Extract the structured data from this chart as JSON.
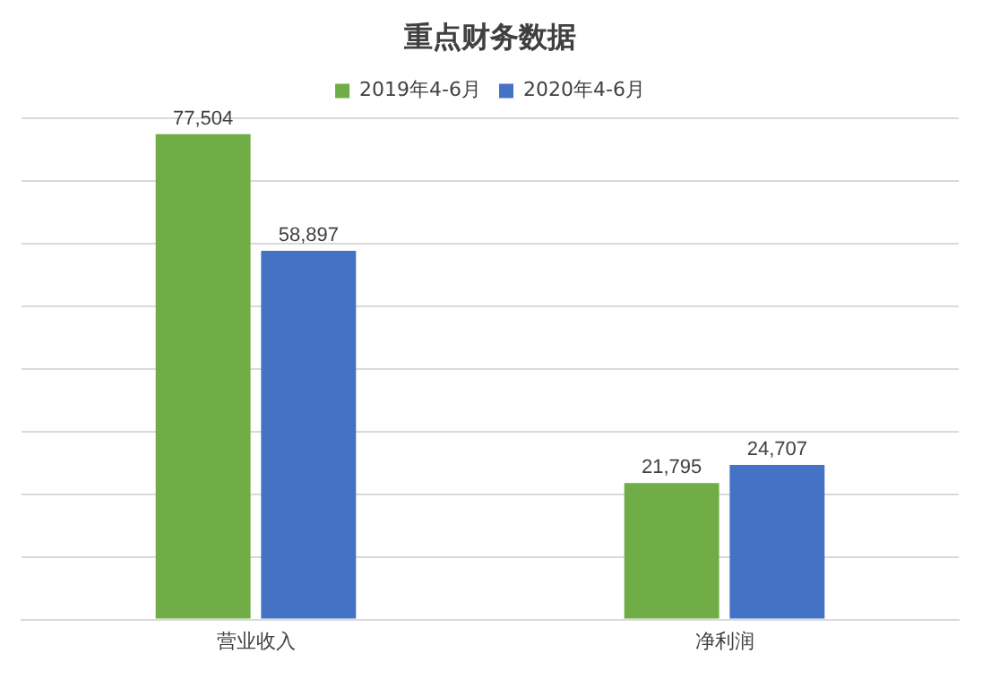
{
  "chart_data": {
    "type": "bar",
    "title": "重点财务数据",
    "categories": [
      "营业收入",
      "净利润"
    ],
    "series": [
      {
        "name": "2019年4-6月",
        "color": "#70ad47",
        "values": [
          77504,
          21795
        ],
        "value_labels": [
          "77,504",
          "21,795"
        ]
      },
      {
        "name": "2020年4-6月",
        "color": "#4472c4",
        "values": [
          58897,
          24707
        ],
        "value_labels": [
          "58,897",
          "24,707"
        ]
      }
    ],
    "tick_labels": "x",
    "grid": "y",
    "legend": "top"
  }
}
